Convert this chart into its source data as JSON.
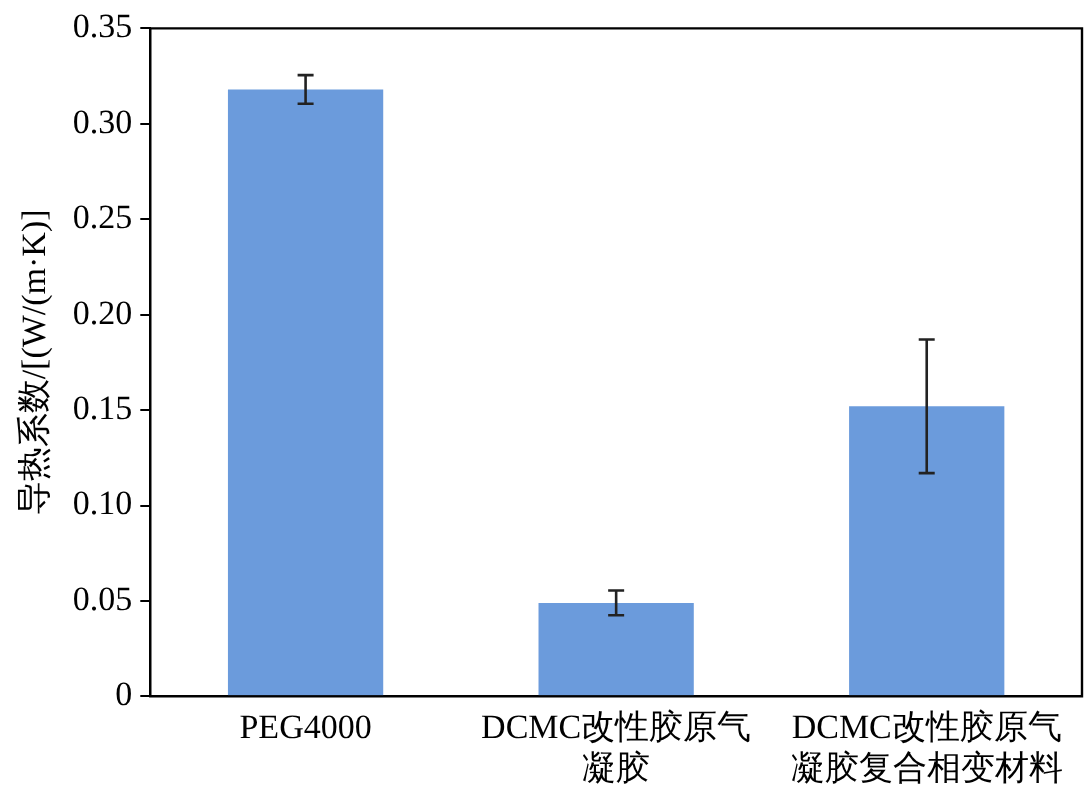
{
  "chart_data": {
    "type": "bar",
    "ylabel": "导热系数/[(W/(m·K)]",
    "categories": [
      "PEG4000",
      "DCMC改性胶原气凝胶",
      "DCMC改性胶原气凝胶复合相变材料"
    ],
    "values": [
      0.318,
      0.049,
      0.152
    ],
    "errors": [
      0.0075,
      0.0065,
      0.035
    ],
    "color": "#6b9bdc",
    "ylim": [
      0,
      0.35
    ],
    "yticks": [
      0,
      0.05,
      {
        "value": 0.1,
        "label": "0.10"
      },
      0.15,
      {
        "value": 0.2,
        "label": "0.20"
      },
      0.25,
      {
        "value": 0.3,
        "label": "0.30"
      },
      0.35
    ],
    "grid": false,
    "legend": false
  }
}
